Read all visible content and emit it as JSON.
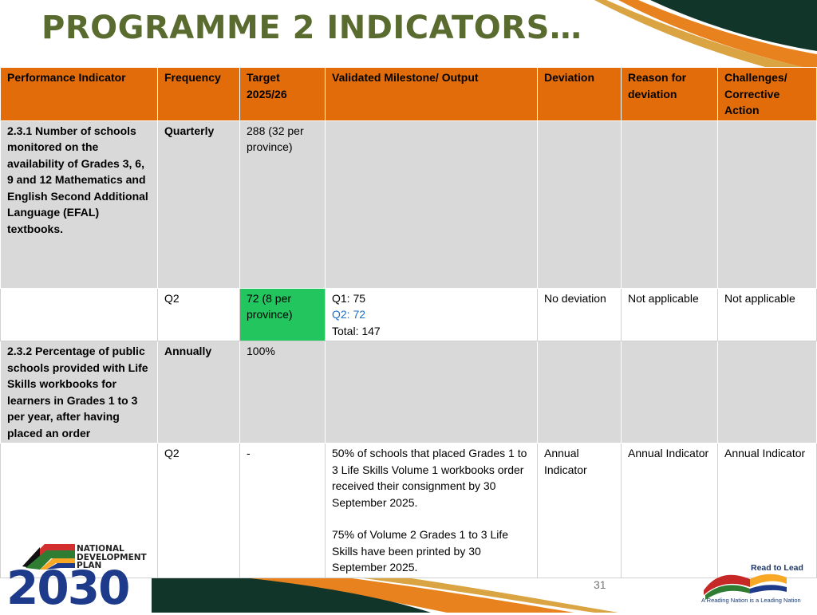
{
  "title": "PROGRAMME 2 INDICATORS…",
  "colors": {
    "title": "#5a6b2f",
    "header_bg": "#e36c0a",
    "row_grey": "#d9d9d9",
    "highlight_green": "#22c55e",
    "link_blue": "#1f6fc5",
    "deco_dark_green": "#12352a",
    "deco_orange": "#e8821e",
    "deco_gold": "#d9a441"
  },
  "table": {
    "headers": [
      "Performance Indicator",
      "Frequency",
      "Target 2025/26",
      "Validated Milestone/ Output",
      "Deviation",
      "Reason for deviation",
      "Challenges/ Corrective Action"
    ],
    "rows": [
      {
        "indicator": "2.3.1 Number of schools monitored on the availability of Grades 3, 6, 9 and 12 Mathematics and English Second Additional Language (EFAL) textbooks.",
        "frequency": "Quarterly",
        "target": "288 (32 per province)"
      },
      {
        "frequency": "Q2",
        "target": "72 (8 per province)",
        "milestone": {
          "q1": "Q1: 75",
          "q2": "Q2: 72",
          "total": "Total: 147"
        },
        "deviation": "No deviation",
        "reason": "Not applicable",
        "challenges": "Not applicable"
      },
      {
        "indicator": "2.3.2 Percentage of public schools provided with Life Skills workbooks for learners in Grades 1 to 3 per year, after having placed an order",
        "frequency": "Annually",
        "target": "100%"
      },
      {
        "frequency": "Q2",
        "target": "-",
        "milestone": {
          "p1": "50% of schools that placed Grades 1 to 3 Life Skills Volume 1 workbooks order received their consignment by 30 September 2025.",
          "p2": "75% of Volume 2 Grades 1 to 3 Life Skills have been printed by 30 September 2025."
        },
        "deviation": "Annual Indicator",
        "reason": "Annual Indicator",
        "challenges": "Annual Indicator"
      }
    ]
  },
  "footer": {
    "page_number": "31",
    "ndp_logo": {
      "line1": "NATIONAL",
      "line2": "DEVELOPMENT",
      "line3": "PLAN",
      "year": "2030"
    },
    "rtl_logo": {
      "title": "Read to Lead",
      "tagline": "A Reading Nation is a Leading Nation",
      "icon": "open-book-icon"
    }
  }
}
